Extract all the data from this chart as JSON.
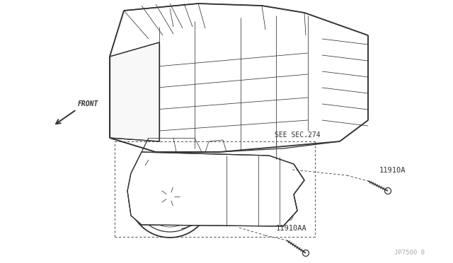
{
  "background_color": "#ffffff",
  "line_color": "#333333",
  "gray_label": "#aaaaaa",
  "labels": {
    "front_arrow": "FRONT",
    "see_sec": "SEE SEC.274",
    "part1": "11910A",
    "part2": "11910AA",
    "part_num": "JP7500 8"
  },
  "lw_main": 0.9,
  "lw_thin": 0.55,
  "lw_bold": 1.3,
  "lw_dash": 0.6
}
